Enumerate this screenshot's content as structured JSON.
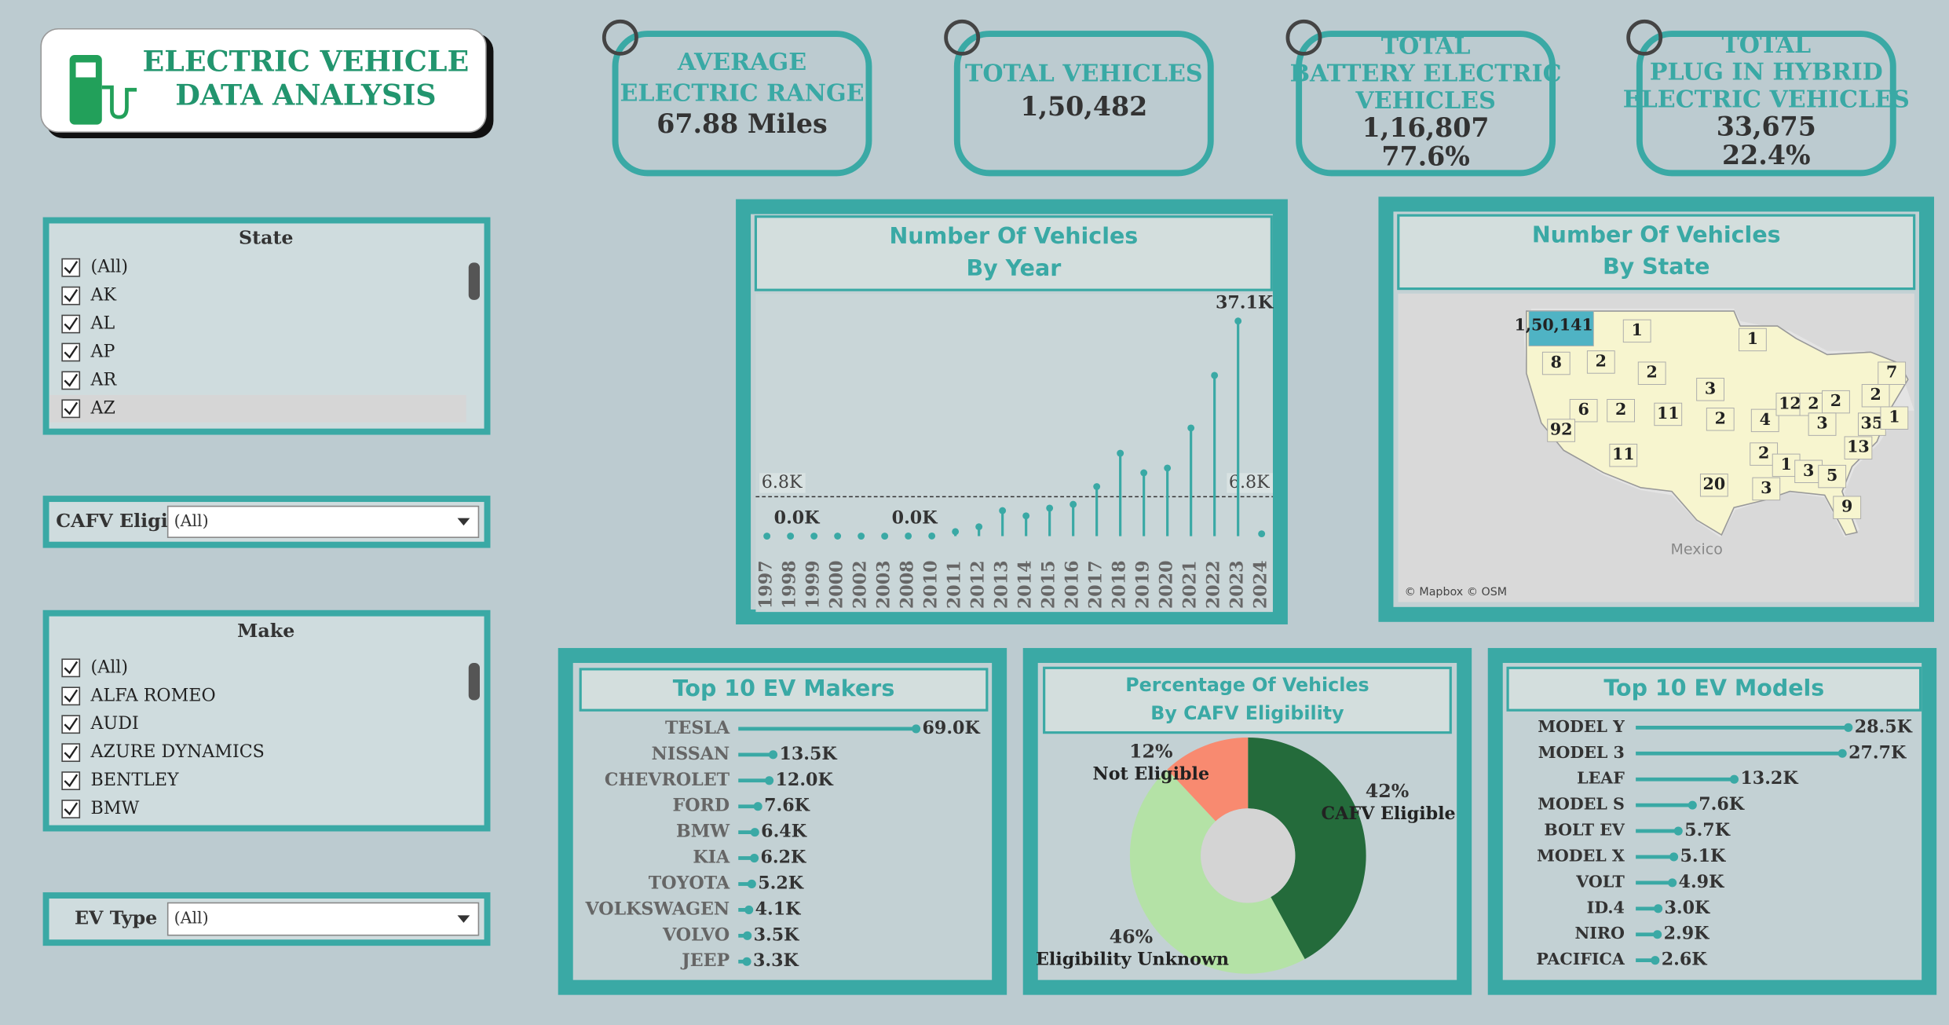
{
  "header": {
    "title_lines": [
      "ELECTRIC VEHICLE",
      "DATA ANALYSIS"
    ]
  },
  "kpis": [
    {
      "label_lines": [
        "AVERAGE",
        "ELECTRIC RANGE"
      ],
      "value_lines": [
        "67.88 Miles"
      ]
    },
    {
      "label_lines": [
        "TOTAL VEHICLES"
      ],
      "value_lines": [
        "1,50,482"
      ]
    },
    {
      "label_lines": [
        "TOTAL",
        "BATTERY ELECTRIC",
        "VEHICLES"
      ],
      "value_lines": [
        "1,16,807",
        "77.6%"
      ]
    },
    {
      "label_lines": [
        "TOTAL",
        "PLUG IN HYBRID",
        "ELECTRIC VEHICLES"
      ],
      "value_lines": [
        "33,675",
        "22.4%"
      ]
    }
  ],
  "filters": {
    "state": {
      "title": "State",
      "items": [
        "(All)",
        "AK",
        "AL",
        "AP",
        "AR",
        "AZ"
      ]
    },
    "cafv": {
      "label": "CAFV Eligi..",
      "value": "(All)"
    },
    "make": {
      "title": "Make",
      "items": [
        "(All)",
        "ALFA ROMEO",
        "AUDI",
        "AZURE DYNAMICS",
        "BENTLEY",
        "BMW"
      ]
    },
    "ev_type": {
      "label": "EV Type",
      "value": "(All)"
    }
  },
  "chart_data": [
    {
      "type": "lollipop",
      "orientation": "vertical",
      "title": [
        "Number Of Vehicles",
        "By Year"
      ],
      "categories": [
        "1997",
        "1998",
        "1999",
        "2000",
        "2002",
        "2003",
        "2008",
        "2010",
        "2011",
        "2012",
        "2013",
        "2014",
        "2015",
        "2016",
        "2017",
        "2018",
        "2019",
        "2020",
        "2021",
        "2022",
        "2023",
        "2024"
      ],
      "values": [
        1,
        1,
        5,
        7,
        2,
        1,
        19,
        23,
        775,
        1614,
        4399,
        3496,
        4826,
        5483,
        8534,
        14286,
        10913,
        11740,
        18645,
        27708,
        37079,
        400
      ],
      "value_labels": [
        null,
        "0.0K",
        null,
        null,
        null,
        null,
        "0.0K",
        null,
        null,
        null,
        null,
        null,
        null,
        null,
        null,
        null,
        null,
        null,
        null,
        null,
        "37.1K",
        null
      ],
      "reference_line": {
        "value": 6800,
        "label": "6.8K"
      },
      "color": "#3aa9a5"
    },
    {
      "type": "map",
      "title": [
        "Number Of Vehicles",
        "By State"
      ],
      "values": [
        150141,
        1,
        1,
        8,
        2,
        2,
        3,
        7,
        2,
        6,
        2,
        11,
        2,
        4,
        12,
        2,
        2,
        3,
        35,
        1,
        92,
        11,
        13,
        2,
        1,
        3,
        5,
        20,
        3,
        9
      ],
      "value_labels": [
        "1,50,141",
        "1",
        "1",
        "8",
        "2",
        "2",
        "3",
        "7",
        "2",
        "6",
        "2",
        "11",
        "2",
        "4",
        "12",
        "2",
        "2",
        "3",
        "35",
        "1",
        "92",
        "11",
        "13",
        "2",
        "1",
        "3",
        "5",
        "20",
        "3",
        "9"
      ],
      "color": "#f7f5cf",
      "highlight_color": "#4fb3c4",
      "annotations": [
        "Mexico"
      ],
      "attribution": "© Mapbox © OSM"
    },
    {
      "type": "lollipop",
      "orientation": "horizontal",
      "title": [
        "Top 10 EV Makers"
      ],
      "categories": [
        "TESLA",
        "NISSAN",
        "CHEVROLET",
        "FORD",
        "BMW",
        "KIA",
        "TOYOTA",
        "VOLKSWAGEN",
        "VOLVO",
        "JEEP"
      ],
      "values": [
        69000,
        13500,
        12000,
        7600,
        6400,
        6200,
        5200,
        4100,
        3500,
        3300
      ],
      "value_labels": [
        "69.0K",
        "13.5K",
        "12.0K",
        "7.6K",
        "6.4K",
        "6.2K",
        "5.2K",
        "4.1K",
        "3.5K",
        "3.3K"
      ],
      "color": "#3aa9a5"
    },
    {
      "type": "donut",
      "title": [
        "Percentage Of Vehicles",
        "By CAFV Eligibility"
      ],
      "categories": [
        "CAFV Eligible",
        "Eligibility Unknown",
        "Not Eligible"
      ],
      "values": [
        42,
        46,
        12
      ],
      "value_labels": [
        "42%",
        "46%",
        "12%"
      ],
      "colors": [
        "#246b3b",
        "#b4e2a6",
        "#f88a70"
      ]
    },
    {
      "type": "lollipop",
      "orientation": "horizontal",
      "title": [
        "Top 10 EV Models"
      ],
      "categories": [
        "MODEL Y",
        "MODEL 3",
        "LEAF",
        "MODEL S",
        "BOLT EV",
        "MODEL X",
        "VOLT",
        "ID.4",
        "NIRO",
        "PACIFICA"
      ],
      "values": [
        28500,
        27700,
        13200,
        7600,
        5700,
        5100,
        4900,
        3000,
        2900,
        2600
      ],
      "value_labels": [
        "28.5K",
        "27.7K",
        "13.2K",
        "7.6K",
        "5.7K",
        "5.1K",
        "4.9K",
        "3.0K",
        "2.9K",
        "2.6K"
      ],
      "color": "#3aa9a5"
    }
  ]
}
